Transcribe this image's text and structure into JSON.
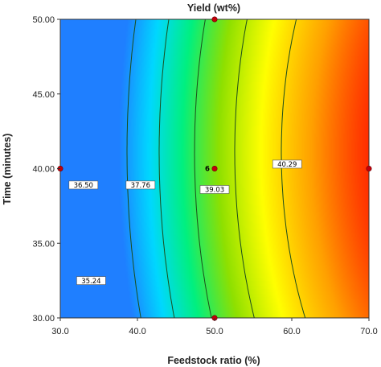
{
  "chart_data": {
    "type": "contour",
    "title": "Yield (wt%)",
    "xlabel": "Feedstock ratio (%)",
    "ylabel": "Time (minutes)",
    "xlim": [
      30.0,
      70.0
    ],
    "ylim": [
      30.0,
      50.0
    ],
    "x_ticks": [
      "30.0",
      "40.0",
      "50.0",
      "60.0",
      "70.0"
    ],
    "y_ticks": [
      "30.00",
      "35.00",
      "40.00",
      "45.00",
      "50.00"
    ],
    "colormap": [
      "#1f7fff",
      "#00d8ff",
      "#00f080",
      "#8fe000",
      "#ffff00",
      "#ffa000",
      "#ff1a00"
    ],
    "response_range": [
      34.9,
      42.2
    ],
    "contours": [
      {
        "level": 35.24,
        "label": "35.24",
        "x": 34.0,
        "y": 32.5
      },
      {
        "level": 36.5,
        "label": "36.50",
        "x": 33.0,
        "y": 38.9
      },
      {
        "level": 37.76,
        "label": "37.76",
        "x": 40.4,
        "y": 38.9
      },
      {
        "level": 39.03,
        "label": "39.03",
        "x": 50.0,
        "y": 38.6
      },
      {
        "level": 40.29,
        "label": "40.29",
        "x": 59.4,
        "y": 40.3
      }
    ],
    "design_points": [
      {
        "x": 30.0,
        "y": 40.0
      },
      {
        "x": 50.0,
        "y": 50.0
      },
      {
        "x": 50.0,
        "y": 40.0,
        "label": "6"
      },
      {
        "x": 50.0,
        "y": 30.0
      },
      {
        "x": 70.0,
        "y": 40.0
      }
    ],
    "grid": false
  }
}
